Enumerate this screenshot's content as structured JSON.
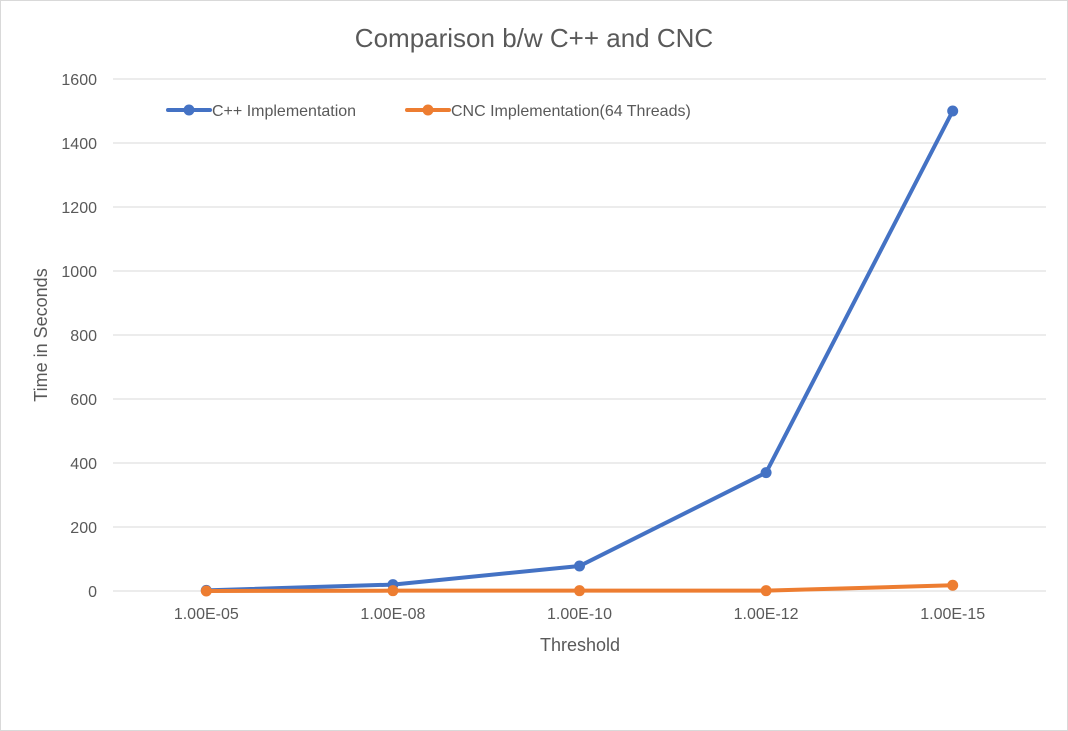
{
  "chart_data": {
    "type": "line",
    "title": "Comparison b/w C++ and CNC",
    "xlabel": "Threshold",
    "ylabel": "Time in Seconds",
    "categories": [
      "1.00E-05",
      "1.00E-08",
      "1.00E-10",
      "1.00E-12",
      "1.00E-15"
    ],
    "ylim": [
      0,
      1600
    ],
    "yticks": [
      0,
      200,
      400,
      600,
      800,
      1000,
      1200,
      1400,
      1600
    ],
    "grid": true,
    "legend_position": "top-left",
    "series": [
      {
        "name": "C++ Implementation",
        "color": "#4472c4",
        "values": [
          2,
          20,
          78,
          370,
          1500
        ]
      },
      {
        "name": "CNC Implementation(64 Threads)",
        "color": "#ed7d31",
        "values": [
          0,
          1,
          1,
          1,
          18
        ]
      }
    ]
  }
}
